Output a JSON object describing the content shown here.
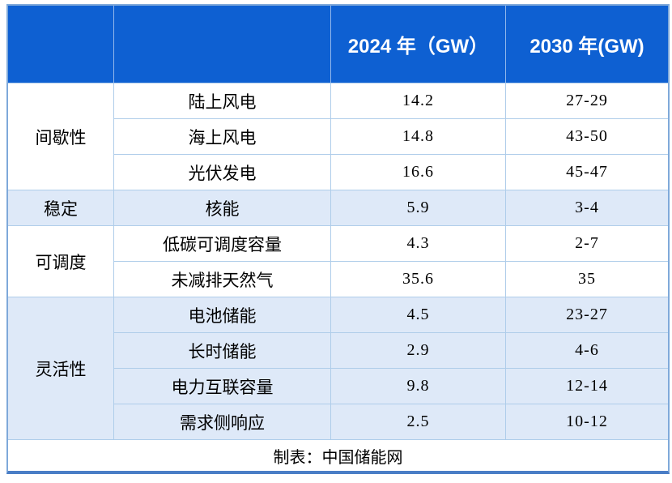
{
  "table": {
    "header": {
      "col_2024": "2024 年（GW）",
      "col_2030": "2030 年(GW)"
    },
    "groups": [
      {
        "label": "间歇性",
        "rows": [
          {
            "item": "陆上风电",
            "v2024": "14.2",
            "v2030": "27-29"
          },
          {
            "item": "海上风电",
            "v2024": "14.8",
            "v2030": "43-50"
          },
          {
            "item": "光伏发电",
            "v2024": "16.6",
            "v2030": "45-47"
          }
        ]
      },
      {
        "label": "稳定",
        "rows": [
          {
            "item": "核能",
            "v2024": "5.9",
            "v2030": "3-4"
          }
        ]
      },
      {
        "label": "可调度",
        "rows": [
          {
            "item": "低碳可调度容量",
            "v2024": "4.3",
            "v2030": "2-7"
          },
          {
            "item": "未减排天然气",
            "v2024": "35.6",
            "v2030": "35"
          }
        ]
      },
      {
        "label": "灵活性",
        "rows": [
          {
            "item": "电池储能",
            "v2024": "4.5",
            "v2030": "23-27"
          },
          {
            "item": "长时储能",
            "v2024": "2.9",
            "v2030": "4-6"
          },
          {
            "item": "电力互联容量",
            "v2024": "9.8",
            "v2030": "12-14"
          },
          {
            "item": "需求侧响应",
            "v2024": "2.5",
            "v2030": "10-12"
          }
        ]
      }
    ],
    "footer": "制表：中国储能网"
  },
  "colors": {
    "header_bg": "#0E60D2",
    "header_text": "#FFFFFF",
    "tint_row_bg": "#DEE9F8",
    "grid_line": "#AFCDEA",
    "outer_border": "#7FA9DA",
    "bottom_border": "#4A7EC6",
    "body_text": "#000000"
  },
  "chart_data": {
    "type": "table",
    "columns": [
      "",
      "",
      "2024 年（GW）",
      "2030 年(GW)"
    ],
    "rows": [
      [
        "间歇性",
        "陆上风电",
        "14.2",
        "27-29"
      ],
      [
        "间歇性",
        "海上风电",
        "14.8",
        "43-50"
      ],
      [
        "间歇性",
        "光伏发电",
        "16.6",
        "45-47"
      ],
      [
        "稳定",
        "核能",
        "5.9",
        "3-4"
      ],
      [
        "可调度",
        "低碳可调度容量",
        "4.3",
        "2-7"
      ],
      [
        "可调度",
        "未减排天然气",
        "35.6",
        "35"
      ],
      [
        "灵活性",
        "电池储能",
        "4.5",
        "23-27"
      ],
      [
        "灵活性",
        "长时储能",
        "2.9",
        "4-6"
      ],
      [
        "灵活性",
        "电力互联容量",
        "9.8",
        "12-14"
      ],
      [
        "灵活性",
        "需求侧响应",
        "2.5",
        "10-12"
      ]
    ],
    "footer": "制表：中国储能网",
    "legend_position": "none",
    "grid": true
  }
}
